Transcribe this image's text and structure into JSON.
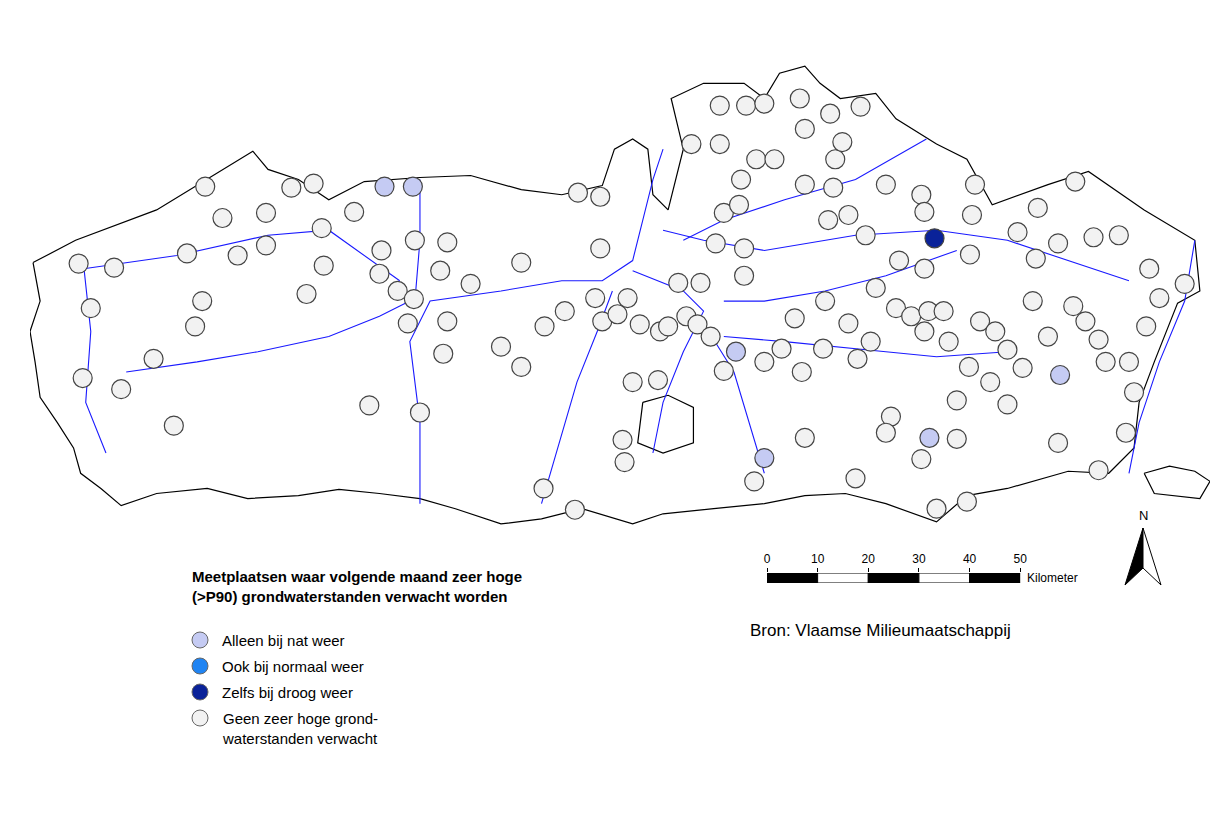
{
  "chart_data": {
    "type": "map",
    "title": "Meetplaatsen waar volgende maand zeer hoge\n(>P90) grondwaterstanden verwacht worden",
    "source": "Bron: Vlaamse Milieumaatschappij",
    "north": "N",
    "tick_labels": false,
    "scale_bar": {
      "ticks": [
        0,
        10,
        20,
        30,
        40,
        50
      ],
      "label": "Kilometer"
    },
    "series": [
      {
        "name": "Alleen bij nat weer",
        "color": "#c5cbf3",
        "x": [
          70,
          75.6,
          139.4,
          203.4,
          177.6,
          145
        ],
        "y": [
          68,
          68,
          35.4,
          30.8,
          18.4,
          14.4
        ]
      },
      {
        "name": "Ook bij normaal weer",
        "color": "#1f84f3",
        "x": [],
        "y": []
      },
      {
        "name": "Zelfs bij droog weer",
        "color": "#0a2299",
        "x": [
          178.6
        ],
        "y": [
          57.8
        ]
      },
      {
        "name": "Geen zeer hoge grond-\nwaterstanden verwacht",
        "color": "#f2f2f2",
        "x": [
          34.6,
          9.6,
          16.6,
          31,
          38,
          46.6,
          51.6,
          56,
          41,
          46.6,
          34,
          32.6,
          12,
          24.4,
          10.4,
          18,
          28.4,
          54.6,
          58,
          57.6,
          64,
          69.4,
          76,
          82.4,
          69,
          72.6,
          75.8,
          81,
          87,
          74.6,
          81.6,
          82.4,
          67,
          77,
          93,
          97,
          97,
          101.6,
          105.6,
          111.6,
          112.6,
          108.2,
          112.6,
          101.4,
          107.6,
          117,
          117.4,
          119,
          124,
          113,
          116,
          118,
          120.4,
          124.4,
          128,
          132.4,
          126,
          129.6,
          131.8,
          134.4,
          137,
          141,
          135.4,
          141,
          137,
          140,
          130.6,
          136.2,
          140.4,
          143.4,
          136.2,
          141.4,
          145,
          152,
          153,
          158,
          164,
          159,
          160.4,
          147,
          153,
          158.6,
          157.6,
          161.6,
          165,
          169,
          176,
          176.6,
          186,
          186.6,
          199,
          206.4,
          185.6,
          171.6,
          176.6,
          195,
          203,
          210,
          215,
          198.6,
          221,
          228,
          223,
          167,
          161.6,
          157,
          151,
          148.4,
          145,
          156.6,
          163.4,
          152.4,
          171,
          174,
          177.4,
          180.4,
          176.6,
          181.4,
          187.6,
          190.6,
          193,
          198,
          206,
          208.4,
          201,
          211,
          220.4,
          217,
          212.4,
          196,
          189.6,
          185.4,
          183,
          193,
          218,
          216.4,
          203,
          211,
          185,
          179,
          170,
          169,
          183,
          176,
          163,
          153,
          143,
          166
        ],
        "y": [
          68,
          52.8,
          52,
          54.8,
          61.8,
          62.8,
          67.8,
          68.6,
          54.4,
          56.4,
          45.4,
          40.4,
          44,
          34,
          30.2,
          28,
          20.8,
          46.8,
          52.4,
          59.8,
          63,
          55.4,
          57.4,
          57,
          50.8,
          47.4,
          45.8,
          51.4,
          48.8,
          41,
          35,
          41.4,
          24.8,
          23.4,
          36.4,
          32.4,
          53,
          40.4,
          43.4,
          46,
          55.8,
          66.8,
          66,
          8.4,
          4.2,
          18,
          13.6,
          29.4,
          29.8,
          41.4,
          42.8,
          46,
          40.8,
          39.4,
          49,
          49,
          40.4,
          42.4,
          40.8,
          38.4,
          31.6,
          50.4,
          56.8,
          55.8,
          62.8,
          64.4,
          76.4,
          76.4,
          69.4,
          73.4,
          84,
          84,
          84.4,
          85.4,
          79.4,
          82.4,
          83.8,
          73.4,
          76.8,
          73.4,
          68.4,
          67.8,
          61.4,
          62.4,
          58.4,
          68.4,
          66.4,
          63,
          62.4,
          68.4,
          63.8,
          69,
          54.6,
          53.4,
          51.8,
          59,
          56.8,
          58,
          58.4,
          53.8,
          51.8,
          48.8,
          46,
          48,
          41,
          45.4,
          42,
          36,
          33.4,
          36,
          34,
          31.4,
          44,
          42.4,
          43.4,
          43.4,
          39.4,
          37.4,
          41.4,
          39.4,
          35.8,
          45.4,
          44.4,
          41.4,
          38.4,
          37.8,
          40.4,
          33.4,
          33.4,
          32.2,
          29.4,
          32.4,
          25.8,
          25,
          27.4,
          19.4,
          17.4,
          12,
          5.8,
          4.4,
          22.6,
          19.4,
          18.2,
          14.2,
          10.4,
          18.4,
          9.8,
          37.4
        ]
      }
    ],
    "outline": {
      "color": "#000000",
      "paths": [
        [
          [
            0.6,
            53
          ],
          [
            9,
            57.4
          ],
          [
            25,
            63.4
          ],
          [
            44,
            75
          ],
          [
            47,
            71.4
          ],
          [
            53,
            69.4
          ],
          [
            59,
            65.4
          ],
          [
            66,
            69
          ],
          [
            77,
            69.8
          ],
          [
            87,
            70.2
          ],
          [
            97,
            67.4
          ],
          [
            105,
            66.4
          ],
          [
            113,
            68.2
          ],
          [
            115.4,
            75.4
          ],
          [
            119,
            77.4
          ],
          [
            122,
            75.4
          ],
          [
            123,
            66.4
          ],
          [
            126,
            63.4
          ],
          [
            129,
            75.4
          ],
          [
            126.6,
            85.4
          ],
          [
            133,
            88.4
          ],
          [
            141,
            88.4
          ],
          [
            145,
            85.4
          ],
          [
            148,
            90.4
          ],
          [
            153,
            91.8
          ],
          [
            156,
            88.4
          ],
          [
            160,
            85.4
          ],
          [
            167,
            86.4
          ],
          [
            171,
            81.4
          ],
          [
            179,
            76.4
          ],
          [
            185,
            73.4
          ],
          [
            190,
            64.4
          ],
          [
            201,
            68.4
          ],
          [
            209,
            71
          ],
          [
            220,
            63.4
          ],
          [
            230,
            57.4
          ],
          [
            231,
            47.4
          ],
          [
            226.6,
            45
          ],
          [
            222,
            33.4
          ],
          [
            219,
            25.4
          ],
          [
            218,
            16.4
          ],
          [
            213,
            11.4
          ],
          [
            205,
            11.8
          ],
          [
            193,
            8.4
          ],
          [
            185,
            7
          ],
          [
            179,
            1.8
          ],
          [
            169,
            5.4
          ],
          [
            161,
            7.4
          ],
          [
            153,
            7
          ],
          [
            145,
            5.4
          ],
          [
            135,
            4.4
          ],
          [
            125,
            3.4
          ],
          [
            119,
            1.4
          ],
          [
            109,
            4.4
          ],
          [
            101,
            2.4
          ],
          [
            93,
            1.4
          ],
          [
            84,
            4.4
          ],
          [
            77,
            6.4
          ],
          [
            69,
            7.4
          ],
          [
            61,
            8.2
          ],
          [
            53,
            7
          ],
          [
            43,
            6.4
          ],
          [
            35,
            8.4
          ],
          [
            25,
            7.4
          ],
          [
            18,
            5
          ],
          [
            14,
            8.4
          ],
          [
            10,
            11.4
          ],
          [
            8.6,
            16.4
          ],
          [
            5.4,
            21.4
          ],
          [
            2,
            26.4
          ],
          [
            1,
            33.4
          ],
          [
            0,
            39.4
          ],
          [
            2,
            45.4
          ],
          [
            0.6,
            53
          ]
        ],
        [
          [
            220,
            11.4
          ],
          [
            225,
            12.8
          ],
          [
            230,
            11.8
          ],
          [
            233,
            9.8
          ],
          [
            231,
            6.4
          ],
          [
            222,
            7.4
          ],
          [
            220,
            11.4
          ]
        ],
        [
          [
            121,
            25.4
          ],
          [
            126,
            26.8
          ],
          [
            131,
            24.4
          ],
          [
            131,
            17.4
          ],
          [
            125,
            15.4
          ],
          [
            120,
            17.4
          ],
          [
            121,
            25.4
          ]
        ]
      ]
    },
    "rivers": {
      "color": "#1a1aff",
      "paths": [
        [
          [
            77,
            5.4
          ],
          [
            77,
            21.4
          ],
          [
            75,
            37.4
          ],
          [
            79,
            45.4
          ],
          [
            93,
            47.4
          ],
          [
            105,
            49.4
          ],
          [
            113,
            49.4
          ],
          [
            119,
            53.4
          ],
          [
            121,
            61.4
          ],
          [
            123,
            69.4
          ],
          [
            125,
            75.4
          ]
        ],
        [
          [
            19,
            31.4
          ],
          [
            33,
            33.4
          ],
          [
            45,
            35.4
          ],
          [
            59,
            38.4
          ],
          [
            69,
            42.4
          ],
          [
            75,
            45.4
          ]
        ],
        [
          [
            10.6,
            51.8
          ],
          [
            29,
            54.4
          ],
          [
            47,
            58.4
          ],
          [
            59,
            59.4
          ],
          [
            73,
            49.4
          ]
        ],
        [
          [
            76,
            45.4
          ],
          [
            77,
            57.4
          ],
          [
            77,
            69.4
          ]
        ],
        [
          [
            101,
            5.4
          ],
          [
            105,
            19.4
          ],
          [
            108,
            29.4
          ],
          [
            112,
            39.4
          ],
          [
            115,
            47.4
          ]
        ],
        [
          [
            123,
            15.4
          ],
          [
            125,
            25.4
          ],
          [
            129,
            35.4
          ],
          [
            133,
            43.4
          ],
          [
            129,
            47.4
          ],
          [
            119,
            51.4
          ]
        ],
        [
          [
            145,
            11.4
          ],
          [
            142,
            21.4
          ],
          [
            139,
            31.4
          ],
          [
            134,
            39.4
          ]
        ],
        [
          [
            193,
            35.4
          ],
          [
            179,
            34.4
          ],
          [
            169,
            35.4
          ],
          [
            159,
            36.4
          ],
          [
            149,
            37.4
          ],
          [
            137,
            38.4
          ]
        ],
        [
          [
            217,
            49.4
          ],
          [
            193,
            57.4
          ],
          [
            179,
            59.4
          ],
          [
            163,
            58.4
          ],
          [
            145,
            55.4
          ],
          [
            133,
            57.4
          ],
          [
            125,
            59.4
          ]
        ],
        [
          [
            177,
            77.4
          ],
          [
            163,
            69.4
          ],
          [
            149,
            65.4
          ],
          [
            137,
            61.4
          ],
          [
            129,
            57.4
          ]
        ],
        [
          [
            230,
            57.4
          ],
          [
            228,
            45.4
          ],
          [
            223,
            33.4
          ],
          [
            219,
            21.4
          ],
          [
            217,
            11.4
          ]
        ],
        [
          [
            183,
            55.4
          ],
          [
            169,
            50.4
          ],
          [
            157,
            47.4
          ],
          [
            145,
            45.4
          ],
          [
            137,
            45.4
          ]
        ],
        [
          [
            10.6,
            52.4
          ],
          [
            12,
            39.4
          ],
          [
            11,
            25.4
          ],
          [
            15,
            15.4
          ]
        ]
      ]
    }
  }
}
